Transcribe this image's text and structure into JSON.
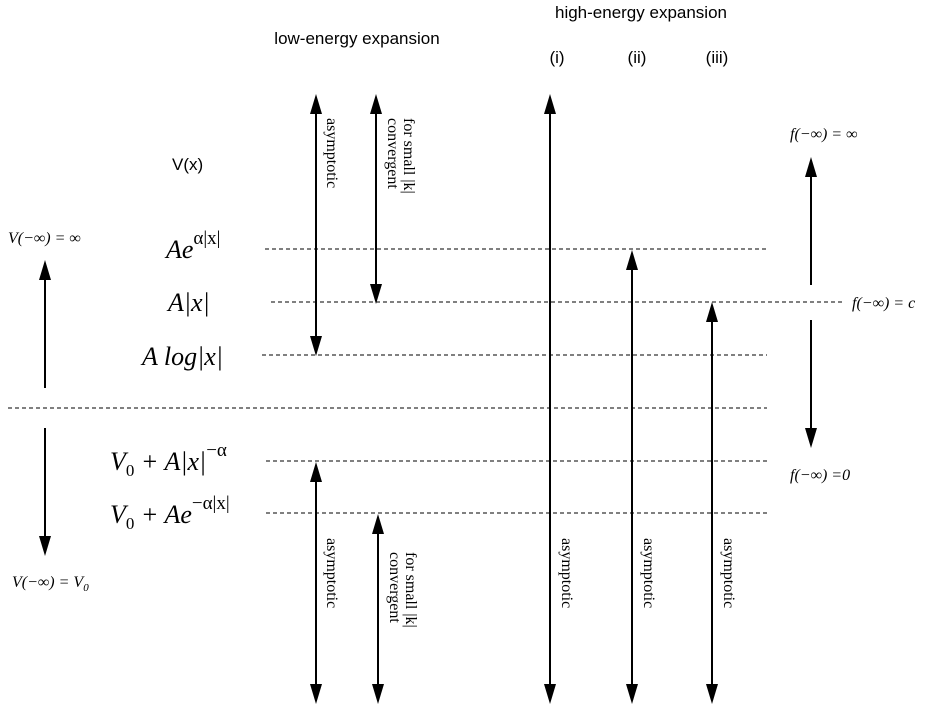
{
  "headers": {
    "low_energy": "low-energy expansion",
    "high_energy": "high-energy expansion",
    "col_i": "(i)",
    "col_ii": "(ii)",
    "col_iii": "(iii)",
    "v_of_x": "V(x)"
  },
  "potentials": {
    "exp_growth": {
      "base": "Ae",
      "exp": "α|x|"
    },
    "linear": "A|x|",
    "log": "A log|x|",
    "power_decay": {
      "main": "V",
      "sub": "0",
      "rest": " + A|x|",
      "exp": "−α"
    },
    "exp_decay": {
      "main": "V",
      "sub": "0",
      "rest": " + Ae",
      "exp": "−α|x|"
    }
  },
  "left_labels": {
    "top": "V(−∞) = ∞",
    "bottom_main": "V(−∞) = V",
    "bottom_sub": "0"
  },
  "right_labels": {
    "top": "f(−∞) = ∞",
    "middle": "f(−∞) = c",
    "bottom": "f(−∞) =0"
  },
  "arrow_labels": {
    "asymptotic": "asymptotic",
    "convergent_line1": "convergent",
    "convergent_line2": "for small |k|"
  }
}
